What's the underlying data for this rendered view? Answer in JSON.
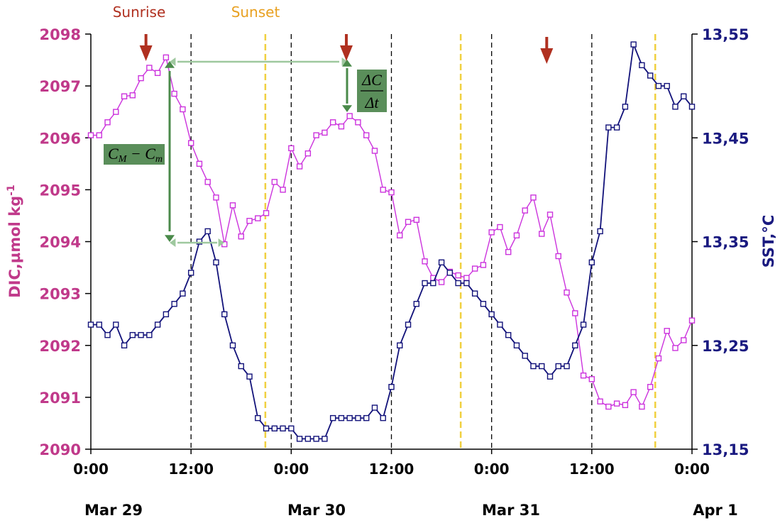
{
  "chart_data": {
    "type": "line",
    "x_unit": "hours from Mar 29 0:00",
    "x_range": [
      0,
      72
    ],
    "x_ticks": [
      0,
      12,
      24,
      36,
      48,
      60,
      72
    ],
    "x_tick_labels": [
      "0:00",
      "12:00",
      "0:00",
      "12:00",
      "0:00",
      "12:00",
      "0:00"
    ],
    "date_labels": [
      "Mar 29",
      "Mar 30",
      "Mar 31",
      "Apr 1"
    ],
    "date_label_positions": [
      0,
      24,
      48,
      72
    ],
    "left_axis": {
      "label": "DIC, µmol kg-1",
      "label_main": "DIC,µmol kg",
      "label_sup": "-1",
      "range": [
        2090,
        2098
      ],
      "ticks": [
        "2090",
        "2091",
        "2092",
        "2093",
        "2094",
        "2095",
        "2096",
        "2097",
        "2098"
      ],
      "color": "#c0398a"
    },
    "right_axis": {
      "label": "SST,°C",
      "range": [
        13.15,
        13.55
      ],
      "ticks": [
        "13,15",
        "13,25",
        "13,35",
        "13,45",
        "13,55"
      ],
      "color": "#1a1a80"
    },
    "series": [
      {
        "name": "DIC",
        "axis": "left",
        "color": "#cc33dd",
        "x": [
          0,
          1,
          2,
          3,
          4,
          5,
          6,
          7,
          8,
          9,
          10,
          11,
          12,
          13,
          14,
          15,
          16,
          17,
          18,
          19,
          20,
          21,
          22,
          23,
          24,
          25,
          26,
          27,
          28,
          29,
          30,
          31,
          32,
          33,
          34,
          35,
          36,
          37,
          38,
          39,
          40,
          41,
          42,
          43,
          44,
          45,
          46,
          47,
          48,
          49,
          50,
          51,
          52,
          53,
          54,
          55,
          56,
          57,
          58,
          59,
          60,
          61,
          62,
          63,
          64,
          65,
          66,
          67,
          68,
          69,
          70,
          71,
          72
        ],
        "values": [
          2096.05,
          2096.05,
          2096.3,
          2096.5,
          2096.8,
          2096.82,
          2097.15,
          2097.35,
          2097.25,
          2097.55,
          2096.85,
          2096.55,
          2095.9,
          2095.5,
          2095.15,
          2094.85,
          2093.95,
          2094.7,
          2094.1,
          2094.4,
          2094.45,
          2094.55,
          2095.15,
          2095.0,
          2095.8,
          2095.45,
          2095.7,
          2096.05,
          2096.1,
          2096.3,
          2096.22,
          2096.42,
          2096.3,
          2096.05,
          2095.75,
          2095.0,
          2094.95,
          2094.12,
          2094.38,
          2094.42,
          2093.62,
          2093.3,
          2093.22,
          2093.42,
          2093.35,
          2093.3,
          2093.48,
          2093.55,
          2094.18,
          2094.28,
          2093.8,
          2094.12,
          2094.6,
          2094.85,
          2094.15,
          2094.52,
          2093.72,
          2093.02,
          2092.62,
          2091.42,
          2091.35,
          2090.92,
          2090.82,
          2090.88,
          2090.85,
          2091.1,
          2090.82,
          2091.2,
          2091.75,
          2092.28,
          2091.95,
          2092.1,
          2092.48
        ]
      },
      {
        "name": "SST",
        "axis": "right",
        "color": "#12127a",
        "x": [
          0,
          1,
          2,
          3,
          4,
          5,
          6,
          7,
          8,
          9,
          10,
          11,
          12,
          13,
          14,
          15,
          16,
          17,
          18,
          19,
          20,
          21,
          22,
          23,
          24,
          25,
          26,
          27,
          28,
          29,
          30,
          31,
          32,
          33,
          34,
          35,
          36,
          37,
          38,
          39,
          40,
          41,
          42,
          43,
          44,
          45,
          46,
          47,
          48,
          49,
          50,
          51,
          52,
          53,
          54,
          55,
          56,
          57,
          58,
          59,
          60,
          61,
          62,
          63,
          64,
          65,
          66,
          67,
          68,
          69,
          70,
          71,
          72
        ],
        "values": [
          13.27,
          13.27,
          13.26,
          13.27,
          13.25,
          13.26,
          13.26,
          13.26,
          13.27,
          13.28,
          13.29,
          13.3,
          13.32,
          13.35,
          13.36,
          13.33,
          13.28,
          13.25,
          13.23,
          13.22,
          13.18,
          13.17,
          13.17,
          13.17,
          13.17,
          13.16,
          13.16,
          13.16,
          13.16,
          13.18,
          13.18,
          13.18,
          13.18,
          13.18,
          13.19,
          13.18,
          13.21,
          13.25,
          13.27,
          13.29,
          13.31,
          13.31,
          13.33,
          13.32,
          13.31,
          13.31,
          13.3,
          13.29,
          13.28,
          13.27,
          13.26,
          13.25,
          13.24,
          13.23,
          13.23,
          13.22,
          13.23,
          13.23,
          13.25,
          13.27,
          13.33,
          13.36,
          13.46,
          13.46,
          13.48,
          13.54,
          13.52,
          13.51,
          13.5,
          13.5,
          13.48,
          13.49,
          13.48
        ]
      }
    ],
    "top_labels": {
      "sunrise": "Sunrise",
      "sunset": "Sunset"
    },
    "sunrise_arrows_x": [
      6.6,
      30.6,
      54.6
    ],
    "sunset_lines_x": [
      20.9,
      44.3,
      67.6
    ],
    "midnight_noon_lines_x": [
      12,
      24,
      36,
      48,
      60
    ],
    "annotations": {
      "amplitude": {
        "text_main": "C",
        "sub1": "M",
        "minus": " − C",
        "sub2": "m"
      },
      "rate": {
        "numerator": "ΔC",
        "denominator": "Δt"
      }
    },
    "colors": {
      "left_axis_text": "#c0398a",
      "right_axis_text": "#1a1a80",
      "sunrise": "#b03020",
      "sunset": "#e8a020",
      "sunset_line": "#f0d040",
      "annotation_box": "#5a8e5a",
      "annotation_arrow": "#4a8a4a",
      "annotation_light": "#9ec89e"
    }
  }
}
